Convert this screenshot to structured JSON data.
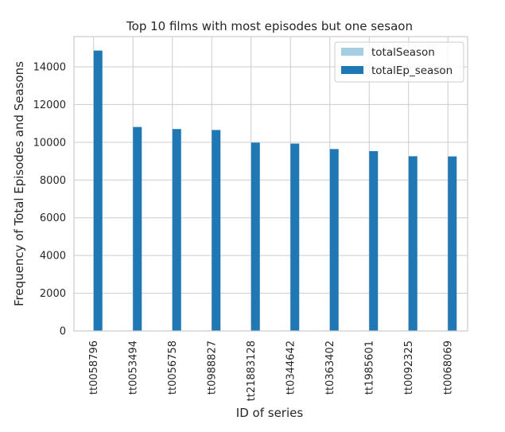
{
  "chart_data": {
    "type": "bar",
    "title": "Top 10 films with most episodes but one sesaon",
    "xlabel": "ID of series",
    "ylabel": "Frequency of Total Episodes and Seasons",
    "categories": [
      "tt0058796",
      "tt0053494",
      "tt0056758",
      "tt0988827",
      "tt21883128",
      "tt0344642",
      "tt0363402",
      "tt1985601",
      "tt0092325",
      "tt0068069"
    ],
    "series": [
      {
        "name": "totalSeason",
        "color": "#a6cee3",
        "values": [
          1,
          1,
          1,
          1,
          1,
          1,
          1,
          1,
          1,
          1
        ]
      },
      {
        "name": "totalEp_season",
        "color": "#1f78b4",
        "values": [
          14860,
          10810,
          10700,
          10650,
          9980,
          9930,
          9640,
          9530,
          9260,
          9250
        ]
      }
    ],
    "yticks": [
      0,
      2000,
      4000,
      6000,
      8000,
      10000,
      12000,
      14000
    ],
    "ylim": [
      0,
      15600
    ],
    "grid": true,
    "legend_position": "top-right"
  }
}
